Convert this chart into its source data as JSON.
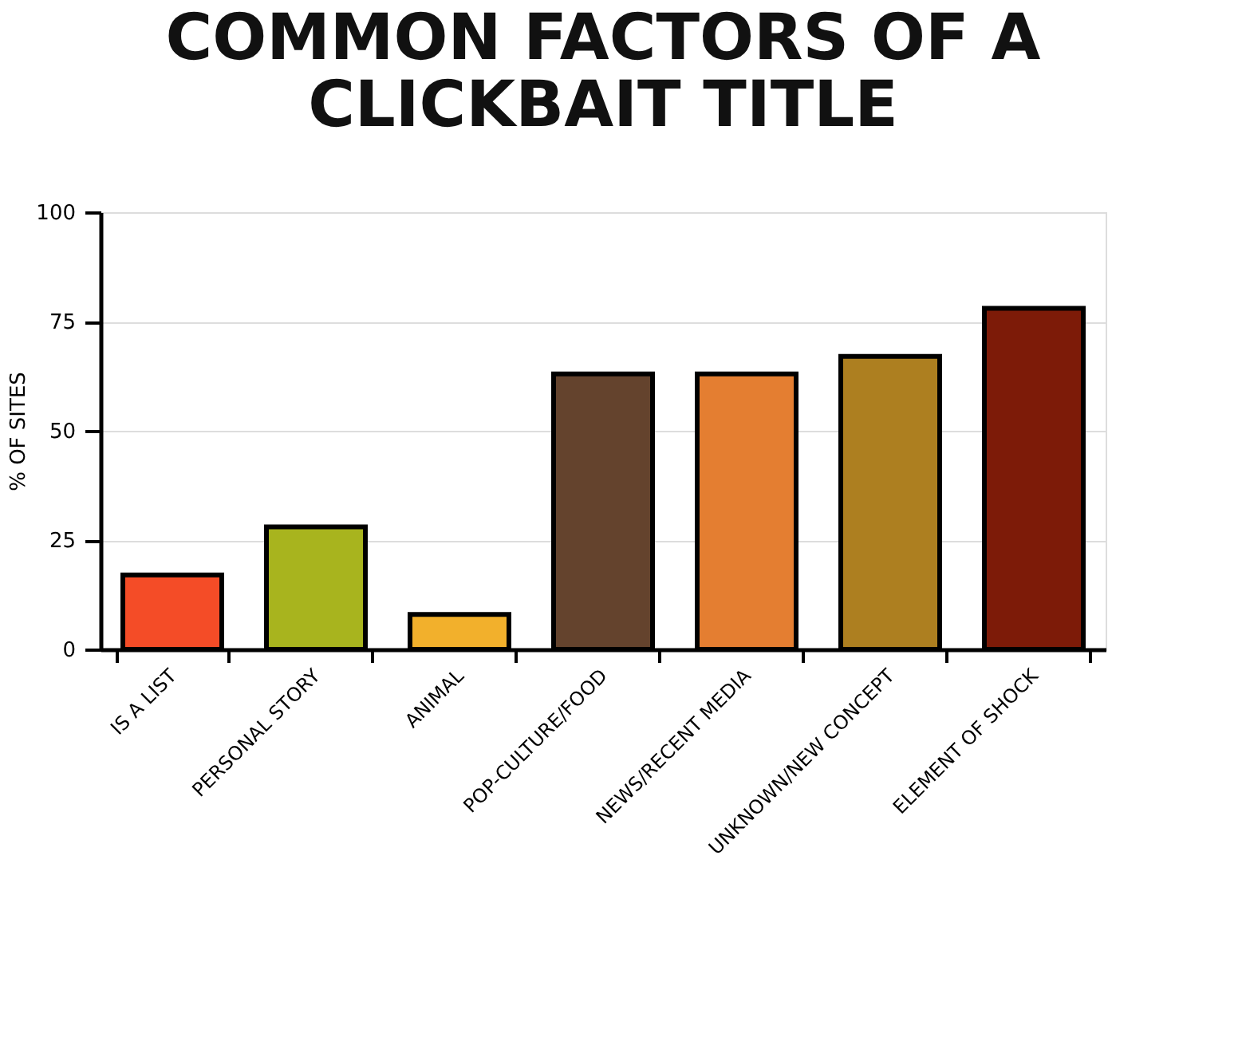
{
  "chart_data": {
    "type": "bar",
    "title": [
      "COMMON FACTORS OF A",
      "CLICKBAIT TITLE"
    ],
    "ylabel": "% OF SITES",
    "categories": [
      "IS A LIST",
      "PERSONAL STORY",
      "ANIMAL",
      "POP-CULTURE/FOOD",
      "NEWS/RECENT MEDIA",
      "UNKNOWN/NEW CONCEPT",
      "ELEMENT OF SHOCK"
    ],
    "values": [
      17,
      28,
      8,
      63,
      63,
      67,
      78
    ],
    "colors": [
      "#f44c27",
      "#a8b41e",
      "#f2b02c",
      "#64432d",
      "#e47e31",
      "#ad7f20",
      "#7d1b08"
    ],
    "ylim": [
      0,
      100
    ],
    "yticks": [
      0,
      25,
      50,
      75,
      100
    ],
    "grid": "y"
  }
}
